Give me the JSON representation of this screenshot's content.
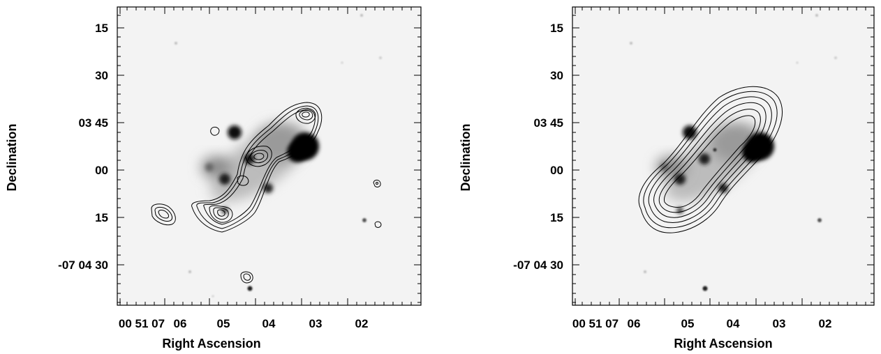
{
  "panels": [
    {
      "id": "left",
      "xlabel": "Right Ascension",
      "ylabel": "Declination",
      "yticks": [
        "15",
        "30",
        "03 45",
        "00",
        "15",
        "-07 04 30"
      ],
      "xticks": [
        "00 51 07",
        "06",
        "05",
        "04",
        "03",
        "02"
      ]
    },
    {
      "id": "right",
      "xlabel": "Right Ascension",
      "ylabel": "Declination",
      "yticks": [
        "15",
        "30",
        "03 45",
        "00",
        "15",
        "-07 04 30"
      ],
      "xticks": [
        "00 51 07",
        "06",
        "05",
        "04",
        "03",
        "02"
      ]
    }
  ]
}
